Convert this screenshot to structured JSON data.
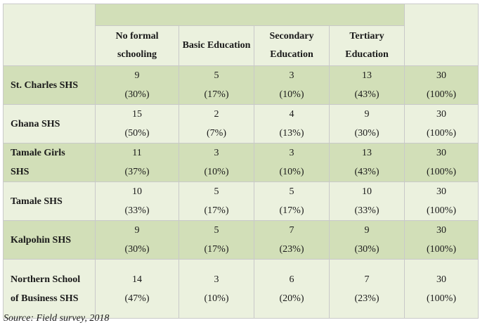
{
  "header": {
    "top_title": "",
    "columns": [
      "No formal schooling",
      "Basic Education",
      "Secondary Education",
      "Tertiary Education",
      ""
    ]
  },
  "rows": [
    {
      "school": "St. Charles SHS",
      "cells": [
        [
          "9",
          "(30%)"
        ],
        [
          "5",
          "(17%)"
        ],
        [
          "3",
          "(10%)"
        ],
        [
          "13",
          "(43%)"
        ],
        [
          "30",
          "(100%)"
        ]
      ]
    },
    {
      "school": "Ghana SHS",
      "cells": [
        [
          "15",
          "(50%)"
        ],
        [
          "2",
          "(7%)"
        ],
        [
          "4",
          "(13%)"
        ],
        [
          "9",
          "(30%)"
        ],
        [
          "30",
          "(100%)"
        ]
      ]
    },
    {
      "school": "Tamale Girls SHS",
      "cells": [
        [
          "11",
          "(37%)"
        ],
        [
          "3",
          "(10%)"
        ],
        [
          "3",
          "(10%)"
        ],
        [
          "13",
          "(43%)"
        ],
        [
          "30",
          "(100%)"
        ]
      ]
    },
    {
      "school": "Tamale SHS",
      "cells": [
        [
          "10",
          "(33%)"
        ],
        [
          "5",
          "(17%)"
        ],
        [
          "5",
          "(17%)"
        ],
        [
          "10",
          "(33%)"
        ],
        [
          "30",
          "(100%)"
        ]
      ]
    },
    {
      "school": "Kalpohin SHS",
      "cells": [
        [
          "9",
          "(30%)"
        ],
        [
          "5",
          "(17%)"
        ],
        [
          "7",
          "(23%)"
        ],
        [
          "9",
          "(30%)"
        ],
        [
          "30",
          "(100%)"
        ]
      ]
    },
    {
      "school": "Northern School of Business SHS",
      "cells": [
        [
          "14",
          "(47%)"
        ],
        [
          "3",
          "(10%)"
        ],
        [
          "6",
          "(20%)"
        ],
        [
          "7",
          "(23%)"
        ],
        [
          "30",
          "(100%)"
        ]
      ]
    }
  ],
  "source": "Source: Field survey, 2018",
  "colors": {
    "light": "#ebf1de",
    "dark": "#d2dfb8",
    "border": "#c9c9c9"
  }
}
